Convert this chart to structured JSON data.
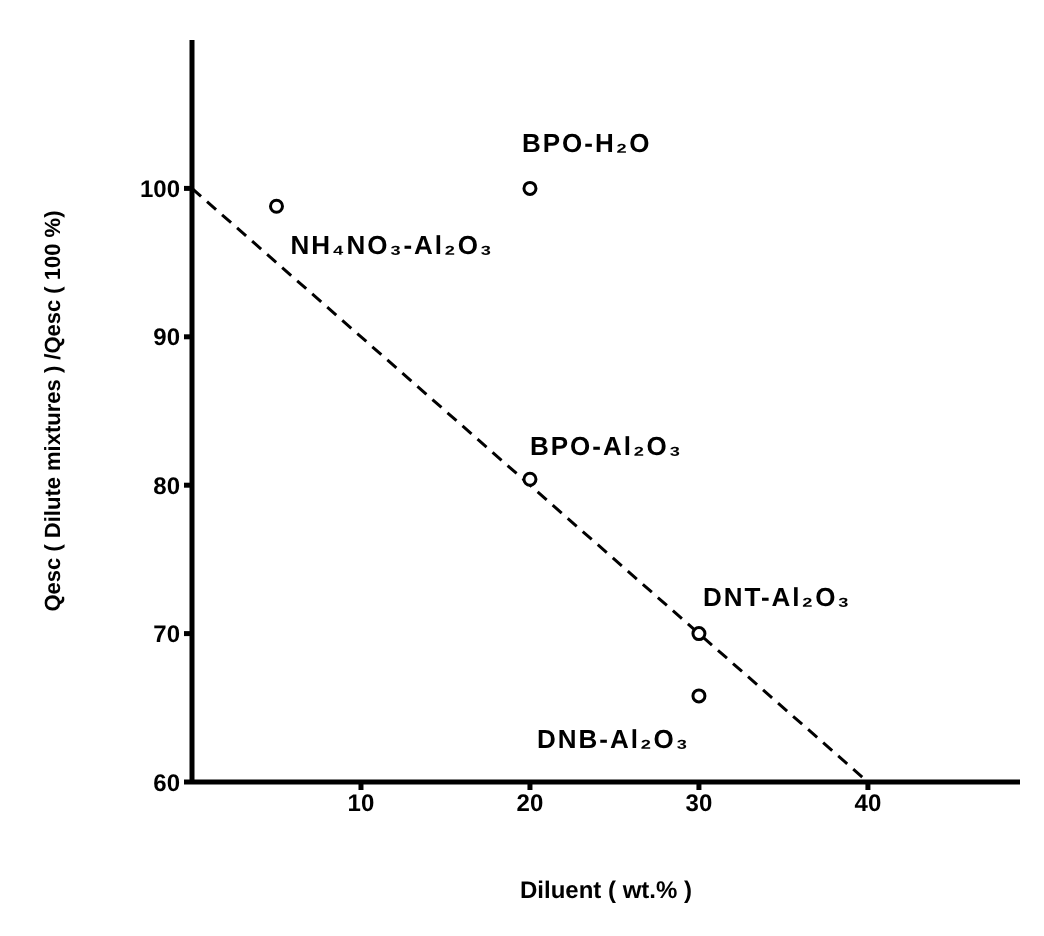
{
  "chart_data": {
    "type": "scatter",
    "xlabel": "Diluent ( wt.% )",
    "ylabel": "Qesc ( Dilute mixtures ) /Qesc ( 100 %)",
    "xlim": [
      0,
      49
    ],
    "xticks": [
      10,
      20,
      30,
      40
    ],
    "ylim": [
      60,
      110
    ],
    "yticks": [
      60,
      70,
      80,
      90,
      100
    ],
    "grid": false,
    "legend": false,
    "marker": "circle",
    "series": [
      {
        "color": "#000000",
        "x": [
          5,
          20,
          20,
          30,
          30
        ],
        "values": [
          98.8,
          100,
          80.4,
          70,
          65.8
        ]
      },
      {
        "type": "line",
        "color": "#000000",
        "line_style": "dashed",
        "marker": "none",
        "x": [
          0,
          40
        ],
        "values": [
          100,
          60
        ]
      }
    ],
    "annotations": [
      {
        "text": "NH₄NO₃-Al₂O₃",
        "x": 5,
        "y": 98.8
      },
      {
        "text": "BPO-H₂O",
        "x": 20,
        "y": 100
      },
      {
        "text": "BPO-Al₂O₃",
        "x": 20,
        "y": 80.4
      },
      {
        "text": "DNT-Al₂O₃",
        "x": 30,
        "y": 70
      },
      {
        "text": "DNB-Al₂O₃",
        "x": 30,
        "y": 65.8
      }
    ]
  }
}
